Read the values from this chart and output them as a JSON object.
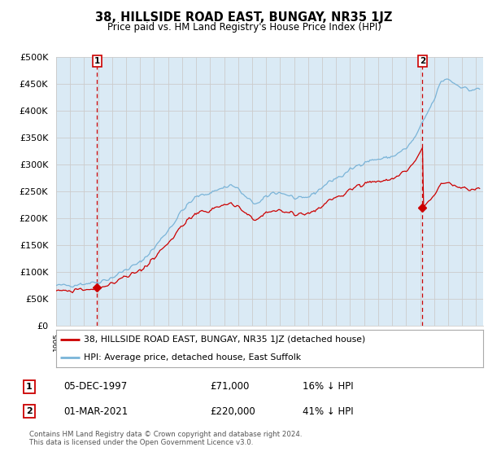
{
  "title": "38, HILLSIDE ROAD EAST, BUNGAY, NR35 1JZ",
  "subtitle": "Price paid vs. HM Land Registry's House Price Index (HPI)",
  "legend_line1": "38, HILLSIDE ROAD EAST, BUNGAY, NR35 1JZ (detached house)",
  "legend_line2": "HPI: Average price, detached house, East Suffolk",
  "sale1_label": "1",
  "sale1_date": "05-DEC-1997",
  "sale1_price": "£71,000",
  "sale1_hpi": "16% ↓ HPI",
  "sale2_label": "2",
  "sale2_date": "01-MAR-2021",
  "sale2_price": "£220,000",
  "sale2_hpi": "41% ↓ HPI",
  "footnote": "Contains HM Land Registry data © Crown copyright and database right 2024.\nThis data is licensed under the Open Government Licence v3.0.",
  "hpi_color": "#7ab4d8",
  "hpi_fill_color": "#daeaf5",
  "sale_color": "#cc0000",
  "dashed_line_color": "#cc0000",
  "background_color": "#ffffff",
  "grid_color": "#cccccc",
  "ylim": [
    0,
    500000
  ],
  "yticks": [
    0,
    50000,
    100000,
    150000,
    200000,
    250000,
    300000,
    350000,
    400000,
    450000,
    500000
  ],
  "sale1_x": 1997.917,
  "sale1_y": 71000,
  "sale2_x": 2021.167,
  "sale2_y": 220000,
  "xmin": 1995.0,
  "xmax": 2025.5
}
